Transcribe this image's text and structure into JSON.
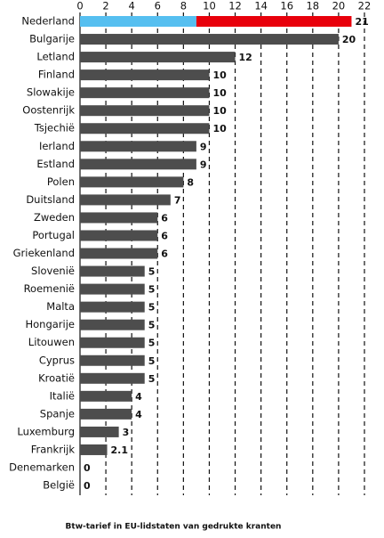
{
  "chart_data": {
    "type": "bar",
    "orientation": "horizontal",
    "title": "Btw-tarief in EU-lidstaten van gedrukte kranten",
    "categories": [
      "Nederland",
      "Bulgarije",
      "Letland",
      "Finland",
      "Slowakije",
      "Oostenrijk",
      "Tsjechië",
      "Ierland",
      "Estland",
      "Polen",
      "Duitsland",
      "Zweden",
      "Portugal",
      "Griekenland",
      "Slovenië",
      "Roemenië",
      "Malta",
      "Hongarije",
      "Litouwen",
      "Cyprus",
      "Kroatië",
      "Italië",
      "Spanje",
      "Luxemburg",
      "Frankrijk",
      "Denemarken",
      "België"
    ],
    "values": [
      21,
      20,
      12,
      10,
      10,
      10,
      10,
      9,
      9,
      8,
      7,
      6,
      6,
      6,
      5,
      5,
      5,
      5,
      5,
      5,
      5,
      4,
      4,
      3,
      2.1,
      0,
      0
    ],
    "color": "#4d4d4d",
    "split": {
      "index": 0,
      "values": [
        9,
        12
      ],
      "colors": [
        "#56bff0",
        "#e8000b"
      ]
    },
    "xlim": [
      0,
      22
    ],
    "xticks": [
      0,
      2,
      4,
      6,
      8,
      10,
      12,
      14,
      16,
      18,
      20,
      22
    ],
    "grid": true
  }
}
